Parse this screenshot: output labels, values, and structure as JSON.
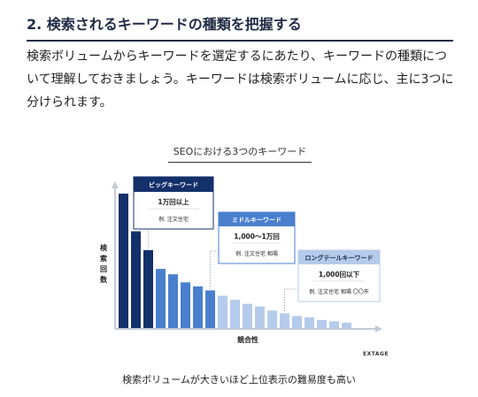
{
  "section": {
    "heading": "2. 検索されるキーワードの種類を把握する",
    "paragraph_lines": [
      "検索ボリュームからキーワードを選定するにあたり、キーワードの種類につ",
      "いて理解しておきましょう。キーワードは検索ボリュームに応じ、主に3つに",
      "分けられます。"
    ]
  },
  "figure": {
    "title": "SEOにおける3つのキーワード",
    "caption": "検索ボリュームが大きいほど上位表示の難易度も高い",
    "brand": "EXTAGE"
  },
  "colors": {
    "big": "#14306b",
    "middle": "#4a7fcf",
    "long": "#b5cbeb",
    "axis": "#c3cbd6"
  },
  "chart_data": {
    "type": "bar",
    "xlabel": "競合性",
    "ylabel": "検索回数",
    "values": [
      100,
      72,
      58,
      44,
      40,
      34,
      31,
      28,
      24,
      21,
      18,
      16,
      13,
      11,
      9,
      8,
      6,
      5,
      4
    ],
    "tiers": [
      {
        "name": "ビッグキーワード",
        "volume": "1万回以上",
        "example": "例. 注文住宅",
        "bar_count": 3,
        "color_key": "big"
      },
      {
        "name": "ミドルキーワード",
        "volume": "1,000〜1万回",
        "example": "例. 注文住宅 相場",
        "bar_count": 5,
        "color_key": "middle"
      },
      {
        "name": "ロングテールキーワード",
        "volume": "1,000回以下",
        "example": "例. 注文住宅 相場 〇〇市",
        "bar_count": 11,
        "color_key": "long"
      }
    ]
  }
}
